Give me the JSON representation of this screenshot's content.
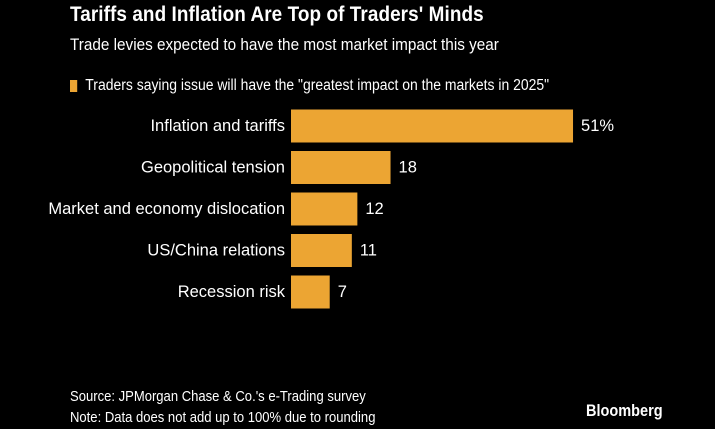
{
  "header": {
    "title": "Tariffs and Inflation Are Top of Traders' Minds",
    "subtitle": "Trade levies expected to have the most market impact this year"
  },
  "legend": {
    "label": "Traders saying issue will have the \"greatest impact on the markets in 2025\""
  },
  "footer": {
    "source": "Source: JPMorgan Chase & Co.'s e-Trading survey",
    "note": "Note: Data does not add up to 100% due to rounding",
    "brand": "Bloomberg"
  },
  "colors": {
    "bar": "#ECA533",
    "background": "#000000",
    "text": "#FFFFFF"
  },
  "chart_data": {
    "type": "bar",
    "orientation": "horizontal",
    "categories": [
      "Inflation and tariffs",
      "Geopolitical tension",
      "Market and economy dislocation",
      "US/China relations",
      "Recession risk"
    ],
    "values": [
      51,
      18,
      12,
      11,
      7
    ],
    "value_labels": [
      "51%",
      "18",
      "12",
      "11",
      "7"
    ],
    "legend_position": "top-left",
    "grid": false
  }
}
